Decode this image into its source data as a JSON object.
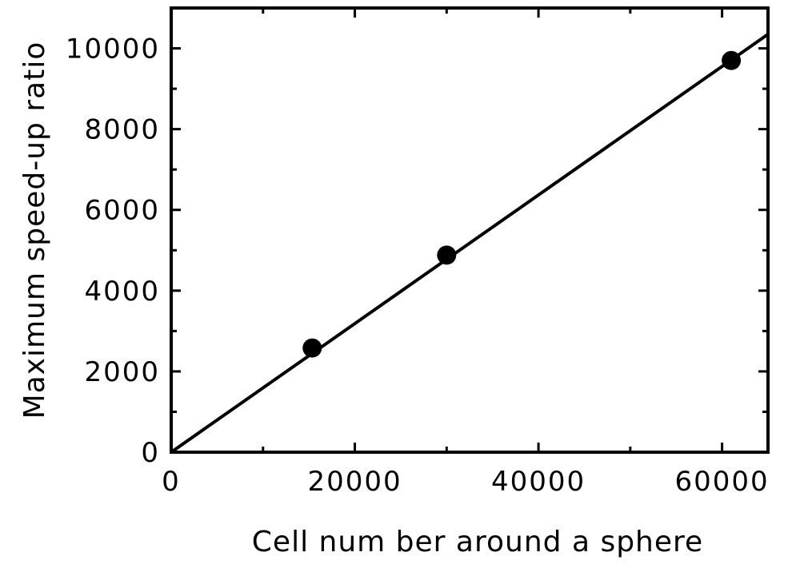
{
  "chart_data": {
    "type": "scatter",
    "title": "",
    "xlabel": "Cell num ber around a sphere",
    "ylabel": "Maximum  speed-up ratio",
    "xlim": [
      0,
      65000
    ],
    "ylim": [
      0,
      11000
    ],
    "x_ticks": [
      0,
      20000,
      40000,
      60000
    ],
    "x_tick_labels": [
      "0",
      "20000",
      "40000",
      "60000"
    ],
    "x_minor_step": 10000,
    "y_ticks": [
      0,
      2000,
      4000,
      6000,
      8000,
      10000
    ],
    "y_tick_labels": [
      "0",
      "2000",
      "4000",
      "6000",
      "8000",
      "10000"
    ],
    "y_minor_step": 1000,
    "grid": false,
    "series": [
      {
        "kind": "points",
        "x": [
          15360,
          30000,
          61000
        ],
        "y": [
          2580,
          4880,
          9700
        ],
        "color": "#000000"
      },
      {
        "kind": "line",
        "x": [
          0,
          65000
        ],
        "y": [
          0,
          10350
        ],
        "color": "#000000"
      }
    ]
  }
}
